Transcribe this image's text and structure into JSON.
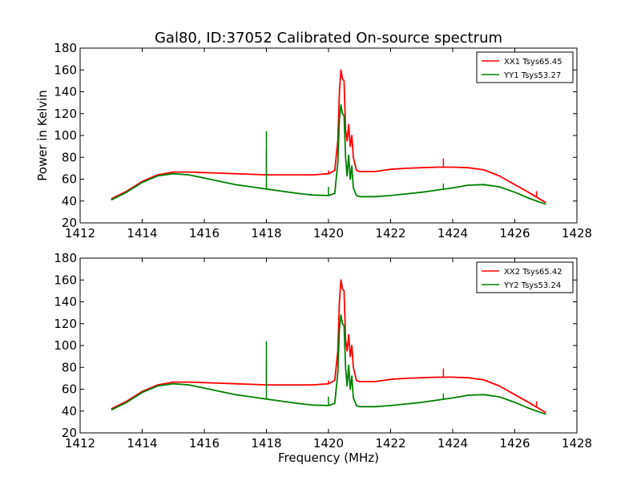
{
  "figure": {
    "title": "Gal80, ID:37052 Calibrated On-source spectrum",
    "xlabel": "Frequency (MHz)",
    "ylabel": "Power in Kelvin"
  },
  "colors": {
    "xx": "#ff0000",
    "yy": "#008000",
    "axes": "#000000",
    "background": "#ffffff"
  },
  "chart_data": [
    {
      "type": "line",
      "title": "Gal80, ID:37052 Calibrated On-source spectrum",
      "xlabel": "",
      "ylabel": "Power in Kelvin",
      "xlim": [
        1412,
        1428
      ],
      "ylim": [
        20,
        180
      ],
      "xticks": [
        1412,
        1414,
        1416,
        1418,
        1420,
        1422,
        1424,
        1426,
        1428
      ],
      "yticks": [
        20,
        40,
        60,
        80,
        100,
        120,
        140,
        160,
        180
      ],
      "legend_position": "top-right",
      "series": [
        {
          "name": "XX1 Tsys65.45",
          "color": "#ff0000",
          "x": [
            1413.0,
            1413.5,
            1414.0,
            1414.5,
            1415.0,
            1415.5,
            1416.0,
            1416.5,
            1417.0,
            1417.5,
            1418.0,
            1418.5,
            1419.0,
            1419.5,
            1420.0,
            1420.2,
            1420.3,
            1420.35,
            1420.4,
            1420.45,
            1420.5,
            1420.55,
            1420.6,
            1420.65,
            1420.7,
            1420.75,
            1420.8,
            1420.9,
            1421.0,
            1421.5,
            1422.0,
            1422.5,
            1423.0,
            1423.5,
            1424.0,
            1424.5,
            1425.0,
            1425.5,
            1426.0,
            1426.5,
            1427.0
          ],
          "values": [
            42,
            49,
            58,
            64,
            66.5,
            66.5,
            66,
            65.5,
            65,
            64.5,
            64,
            64,
            64,
            64,
            65,
            68,
            95,
            140,
            160,
            152,
            150,
            105,
            95,
            110,
            90,
            100,
            80,
            68,
            67,
            67,
            69,
            70,
            70.5,
            71,
            71,
            70.5,
            68.5,
            63,
            55,
            47,
            38.5
          ],
          "spikes": [
            {
              "x": 1418.0,
              "value": 86
            },
            {
              "x": 1420.0,
              "value": 68
            },
            {
              "x": 1423.7,
              "value": 79
            },
            {
              "x": 1426.7,
              "value": 49
            }
          ]
        },
        {
          "name": "YY1 Tsys53.27",
          "color": "#008000",
          "x": [
            1413.0,
            1413.5,
            1414.0,
            1414.5,
            1415.0,
            1415.5,
            1416.0,
            1416.5,
            1417.0,
            1417.5,
            1418.0,
            1418.5,
            1419.0,
            1419.5,
            1420.0,
            1420.2,
            1420.3,
            1420.35,
            1420.4,
            1420.45,
            1420.5,
            1420.55,
            1420.6,
            1420.65,
            1420.7,
            1420.75,
            1420.8,
            1420.9,
            1421.0,
            1421.5,
            1422.0,
            1422.5,
            1423.0,
            1423.5,
            1424.0,
            1424.5,
            1425.0,
            1425.5,
            1426.0,
            1426.5,
            1427.0
          ],
          "values": [
            41,
            48,
            57,
            63,
            65,
            64,
            61,
            58,
            55,
            53,
            51,
            49,
            47,
            45.5,
            45,
            47,
            75,
            115,
            128,
            120,
            118,
            80,
            63,
            82,
            60,
            72,
            52,
            45,
            44,
            44,
            45,
            46.5,
            48,
            50,
            52,
            54.5,
            55,
            53,
            48,
            42,
            37
          ],
          "spikes": [
            {
              "x": 1418.0,
              "value": 104
            },
            {
              "x": 1420.0,
              "value": 53
            },
            {
              "x": 1423.7,
              "value": 56
            }
          ]
        }
      ]
    },
    {
      "type": "line",
      "title": "",
      "xlabel": "Frequency (MHz)",
      "ylabel": "",
      "xlim": [
        1412,
        1428
      ],
      "ylim": [
        20,
        180
      ],
      "xticks": [
        1412,
        1414,
        1416,
        1418,
        1420,
        1422,
        1424,
        1426,
        1428
      ],
      "yticks": [
        20,
        40,
        60,
        80,
        100,
        120,
        140,
        160,
        180
      ],
      "legend_position": "top-right",
      "series": [
        {
          "name": "XX2 Tsys65.42",
          "color": "#ff0000",
          "x": [
            1413.0,
            1413.5,
            1414.0,
            1414.5,
            1415.0,
            1415.5,
            1416.0,
            1416.5,
            1417.0,
            1417.5,
            1418.0,
            1418.5,
            1419.0,
            1419.5,
            1420.0,
            1420.2,
            1420.3,
            1420.35,
            1420.4,
            1420.45,
            1420.5,
            1420.55,
            1420.6,
            1420.65,
            1420.7,
            1420.75,
            1420.8,
            1420.9,
            1421.0,
            1421.5,
            1422.0,
            1422.5,
            1423.0,
            1423.5,
            1424.0,
            1424.5,
            1425.0,
            1425.5,
            1426.0,
            1426.5,
            1427.0
          ],
          "values": [
            42,
            49,
            58,
            64,
            66.5,
            66.5,
            66,
            65.5,
            65,
            64.5,
            64,
            64,
            64,
            64,
            65,
            68,
            95,
            140,
            160,
            152,
            150,
            105,
            95,
            110,
            90,
            100,
            80,
            68,
            67,
            67,
            69,
            70,
            70.5,
            71,
            71,
            70.5,
            68.5,
            63,
            55,
            47,
            38.5
          ],
          "spikes": [
            {
              "x": 1418.0,
              "value": 86
            },
            {
              "x": 1420.0,
              "value": 68
            },
            {
              "x": 1423.7,
              "value": 79
            },
            {
              "x": 1426.7,
              "value": 49
            }
          ]
        },
        {
          "name": "YY2 Tsys53.24",
          "color": "#008000",
          "x": [
            1413.0,
            1413.5,
            1414.0,
            1414.5,
            1415.0,
            1415.5,
            1416.0,
            1416.5,
            1417.0,
            1417.5,
            1418.0,
            1418.5,
            1419.0,
            1419.5,
            1420.0,
            1420.2,
            1420.3,
            1420.35,
            1420.4,
            1420.45,
            1420.5,
            1420.55,
            1420.6,
            1420.65,
            1420.7,
            1420.75,
            1420.8,
            1420.9,
            1421.0,
            1421.5,
            1422.0,
            1422.5,
            1423.0,
            1423.5,
            1424.0,
            1424.5,
            1425.0,
            1425.5,
            1426.0,
            1426.5,
            1427.0
          ],
          "values": [
            41,
            48,
            57,
            63,
            65,
            64,
            61,
            58,
            55,
            53,
            51,
            49,
            47,
            45.5,
            45,
            47,
            75,
            115,
            128,
            120,
            118,
            80,
            63,
            82,
            60,
            72,
            52,
            45,
            44,
            44,
            45,
            46.5,
            48,
            50,
            52,
            54.5,
            55,
            53,
            48,
            42,
            37
          ],
          "spikes": [
            {
              "x": 1418.0,
              "value": 104
            },
            {
              "x": 1420.0,
              "value": 53
            },
            {
              "x": 1423.7,
              "value": 56
            }
          ]
        }
      ]
    }
  ]
}
